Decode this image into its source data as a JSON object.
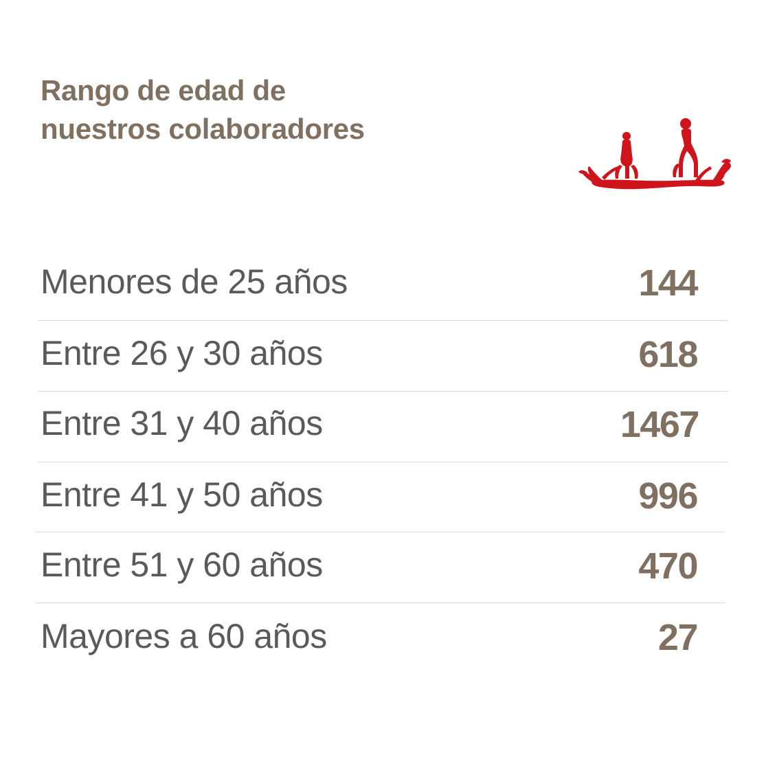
{
  "title": {
    "line1": "Rango de edad de",
    "line2": "nuestros colaboradores"
  },
  "logo": {
    "icon": "boat-with-figures-icon",
    "color": "#d0141c"
  },
  "colors": {
    "title": "#807062",
    "label": "#5a5a5a",
    "value": "#807062",
    "divider": "#d9d9d9"
  },
  "rows": [
    {
      "label": "Menores de 25 años",
      "value": "144"
    },
    {
      "label": "Entre 26 y 30 años",
      "value": "618"
    },
    {
      "label": "Entre 31 y 40 años",
      "value": "1467"
    },
    {
      "label": "Entre 41 y 50 años",
      "value": "996"
    },
    {
      "label": "Entre 51 y 60 años",
      "value": "470"
    },
    {
      "label": "Mayores a 60 años",
      "value": "27"
    }
  ]
}
